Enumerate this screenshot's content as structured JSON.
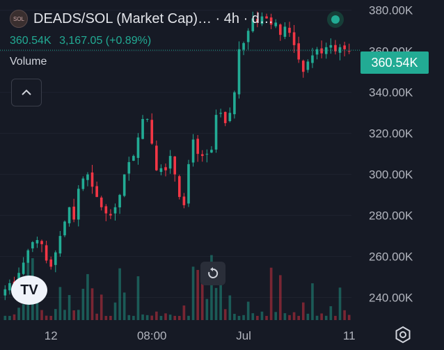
{
  "header": {
    "title": "DEADS/SOL (Market Cap)… · 4h · d…",
    "logo_text": "SOL",
    "last_value": "360.54K",
    "change": "3,167.05 (+0.89%)",
    "volume_label": "Volume"
  },
  "price_tag": "360.54K",
  "colors": {
    "up": "#22ab94",
    "down": "#f23645",
    "background": "#161a25"
  },
  "icons": {
    "collapse": "chevron-up-icon",
    "reset": "reset-icon",
    "settings": "settings-icon",
    "brand": "tradingview-logo"
  },
  "brand_text": "TV",
  "chart_data": {
    "type": "candlestick",
    "y_ticks": [
      "380.00K",
      "360.00K",
      "340.00K",
      "320.00K",
      "300.00K",
      "280.00K",
      "260.00K",
      "240.00K"
    ],
    "y_tick_values": [
      380,
      360,
      340,
      320,
      300,
      280,
      260,
      240
    ],
    "ylim": [
      229,
      385
    ],
    "x_ticks": [
      "12",
      "08:00",
      "Jul",
      "11"
    ],
    "x_tick_index": [
      10,
      32,
      52,
      75
    ],
    "last_price": 360.54,
    "close_path": [
      244,
      247,
      246,
      252,
      257,
      263,
      267,
      268,
      266,
      258,
      255,
      262,
      270,
      277,
      284,
      278,
      293,
      298,
      300,
      294,
      289,
      284,
      281,
      280,
      284,
      290,
      300,
      306,
      309,
      318,
      327,
      327,
      315,
      302,
      303,
      302,
      309,
      300,
      289,
      285,
      305,
      317,
      310,
      309,
      310,
      312,
      329,
      330,
      325,
      330,
      340,
      361,
      364,
      370,
      376,
      374,
      377,
      376,
      373,
      374,
      368,
      372,
      369,
      363,
      356,
      350,
      355,
      358,
      361,
      359,
      362,
      363,
      360,
      362,
      361,
      360
    ]
  }
}
